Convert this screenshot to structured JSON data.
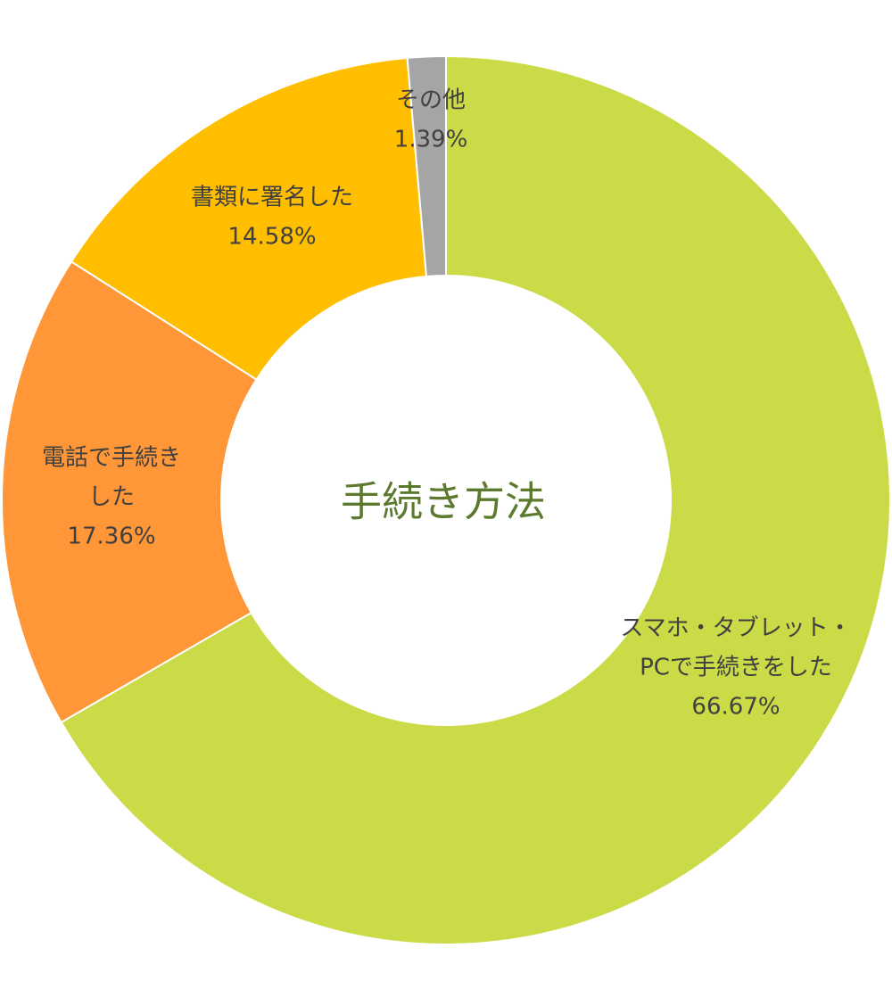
{
  "chart_data": {
    "type": "donut",
    "title": "手続き方法",
    "categories": [
      [
        "スマホ・タブレット・",
        "PCで手続きをした"
      ],
      [
        "電話で手続き",
        "した"
      ],
      [
        "書類に署名した"
      ],
      [
        "その他"
      ]
    ],
    "values": [
      66.67,
      17.36,
      14.58,
      1.39
    ],
    "value_labels": [
      "66.67%",
      "17.36%",
      "14.58%",
      "1.39%"
    ],
    "colors": [
      "#cbdb47",
      "#ff9637",
      "#ffbf00",
      "#a5a5a5"
    ]
  }
}
